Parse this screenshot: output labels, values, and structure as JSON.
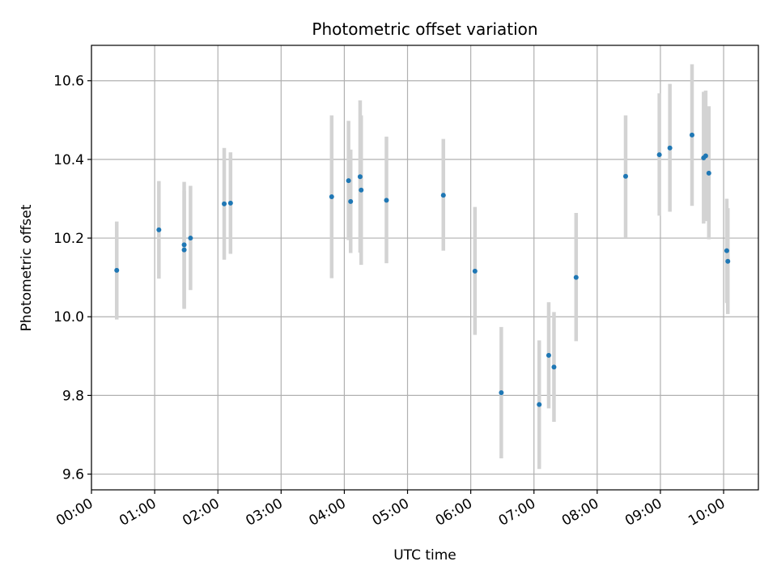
{
  "chart_data": {
    "type": "scatter",
    "title": "Photometric offset variation",
    "xlabel": "UTC time",
    "ylabel": "Photometric offset",
    "x_is_time": true,
    "xlim": [
      "00:00",
      "10:33"
    ],
    "ylim": [
      9.56,
      10.69
    ],
    "x_ticks": [
      "00:00",
      "01:00",
      "02:00",
      "03:00",
      "04:00",
      "05:00",
      "06:00",
      "07:00",
      "08:00",
      "09:00",
      "10:00"
    ],
    "y_ticks": [
      9.6,
      9.8,
      10.0,
      10.2,
      10.4,
      10.6
    ],
    "y_tick_labels": [
      "9.6",
      "9.8",
      "10.0",
      "10.2",
      "10.4",
      "10.6"
    ],
    "grid": true,
    "colors": {
      "point": "#1f77b4",
      "errorbar": "#d3d3d3",
      "grid": "#b0b0b0"
    },
    "series": [
      {
        "points": [
          {
            "x": "00:24",
            "y": 10.118,
            "lo": 9.993,
            "hi": 10.242
          },
          {
            "x": "01:04",
            "y": 10.221,
            "lo": 10.097,
            "hi": 10.345
          },
          {
            "x": "01:28",
            "y": 10.183,
            "lo": 10.022,
            "hi": 10.343
          },
          {
            "x": "01:28",
            "y": 10.17,
            "lo": 10.02,
            "hi": 10.32
          },
          {
            "x": "01:34",
            "y": 10.2,
            "lo": 10.068,
            "hi": 10.333
          },
          {
            "x": "02:06",
            "y": 10.287,
            "lo": 10.145,
            "hi": 10.429
          },
          {
            "x": "02:12",
            "y": 10.289,
            "lo": 10.16,
            "hi": 10.418
          },
          {
            "x": "03:48",
            "y": 10.305,
            "lo": 10.098,
            "hi": 10.512
          },
          {
            "x": "04:04",
            "y": 10.346,
            "lo": 10.195,
            "hi": 10.498
          },
          {
            "x": "04:06",
            "y": 10.293,
            "lo": 10.162,
            "hi": 10.425
          },
          {
            "x": "04:15",
            "y": 10.356,
            "lo": 10.163,
            "hi": 10.55
          },
          {
            "x": "04:16",
            "y": 10.322,
            "lo": 10.132,
            "hi": 10.512
          },
          {
            "x": "04:40",
            "y": 10.296,
            "lo": 10.136,
            "hi": 10.458
          },
          {
            "x": "05:34",
            "y": 10.309,
            "lo": 10.168,
            "hi": 10.452
          },
          {
            "x": "06:04",
            "y": 10.116,
            "lo": 9.954,
            "hi": 10.279
          },
          {
            "x": "06:29",
            "y": 9.807,
            "lo": 9.64,
            "hi": 9.974
          },
          {
            "x": "07:05",
            "y": 9.777,
            "lo": 9.613,
            "hi": 9.94
          },
          {
            "x": "07:14",
            "y": 9.902,
            "lo": 9.767,
            "hi": 10.037
          },
          {
            "x": "07:19",
            "y": 9.872,
            "lo": 9.733,
            "hi": 10.012
          },
          {
            "x": "07:40",
            "y": 10.1,
            "lo": 9.938,
            "hi": 10.264
          },
          {
            "x": "08:27",
            "y": 10.357,
            "lo": 10.202,
            "hi": 10.512
          },
          {
            "x": "08:59",
            "y": 10.412,
            "lo": 10.257,
            "hi": 10.568
          },
          {
            "x": "09:09",
            "y": 10.429,
            "lo": 10.267,
            "hi": 10.592
          },
          {
            "x": "09:30",
            "y": 10.462,
            "lo": 10.282,
            "hi": 10.642
          },
          {
            "x": "09:41",
            "y": 10.404,
            "lo": 10.237,
            "hi": 10.572
          },
          {
            "x": "09:43",
            "y": 10.409,
            "lo": 10.243,
            "hi": 10.575
          },
          {
            "x": "09:46",
            "y": 10.365,
            "lo": 10.197,
            "hi": 10.535
          },
          {
            "x": "10:03",
            "y": 10.168,
            "lo": 10.035,
            "hi": 10.3
          },
          {
            "x": "10:04",
            "y": 10.141,
            "lo": 10.007,
            "hi": 10.276
          }
        ]
      }
    ]
  }
}
